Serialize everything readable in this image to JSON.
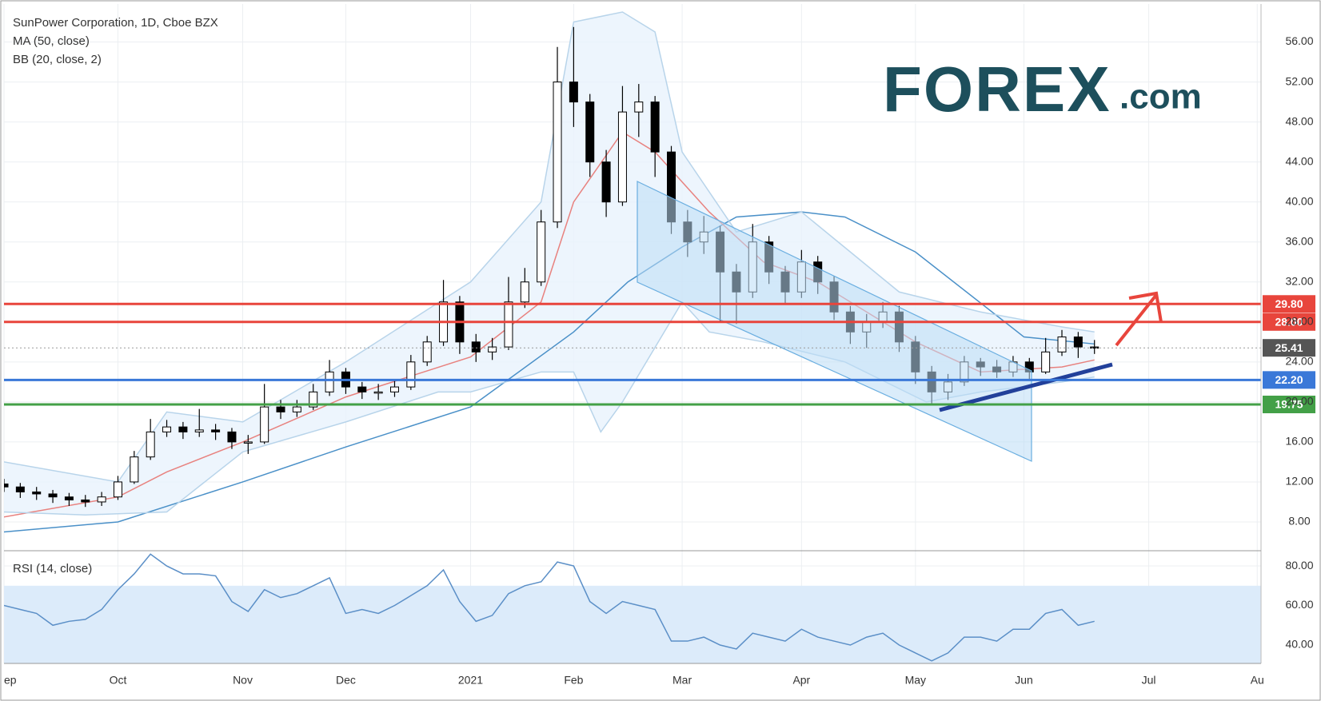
{
  "chart_data": {
    "type": "candlestick",
    "title": "SunPower Corporation, 1D, Cboe BZX",
    "indicators": [
      "MA (50, close)",
      "BB (20, close, 2)"
    ],
    "x": [
      0,
      3,
      6,
      9,
      12,
      15,
      18,
      21,
      24,
      27,
      30,
      33,
      36,
      39,
      42,
      45,
      48,
      51,
      54,
      57,
      60,
      63,
      66,
      69,
      72,
      75,
      78,
      81,
      84,
      87,
      90,
      93,
      96,
      99,
      102,
      105,
      108,
      111,
      114,
      117,
      120,
      123,
      126,
      129,
      132,
      135,
      138,
      141,
      144,
      147,
      150,
      153,
      156,
      159,
      162,
      165,
      168,
      171,
      174,
      177,
      180,
      183,
      186,
      189,
      192,
      195,
      198,
      201
    ],
    "open": [
      11.8,
      11.5,
      11,
      10.8,
      10.5,
      10.2,
      10,
      10.5,
      12,
      14.5,
      17,
      17.5,
      17,
      17.2,
      17,
      16,
      16,
      19.5,
      19,
      19.5,
      21,
      23,
      21.5,
      21,
      21,
      21.5,
      24,
      26,
      30,
      26,
      25,
      25.5,
      30,
      32,
      38,
      52,
      50,
      44,
      40,
      49,
      50,
      45,
      38,
      36,
      37,
      33,
      31,
      36,
      33,
      31,
      34,
      32,
      29,
      27,
      28,
      29,
      26,
      23,
      21,
      22,
      24,
      23.5,
      23,
      24,
      23,
      25,
      26.5,
      25.5
    ],
    "high": [
      12.3,
      11.9,
      11.5,
      11.2,
      10.9,
      10.7,
      11,
      12.6,
      15.1,
      18.3,
      18.2,
      18,
      19.3,
      17.8,
      17.4,
      16.7,
      21.8,
      20.2,
      20.2,
      21.8,
      24.2,
      23.4,
      22,
      21.8,
      22.2,
      24.7,
      26.6,
      32.2,
      30.6,
      26.8,
      26.4,
      32.5,
      33.4,
      39.2,
      55.5,
      57.5,
      50.8,
      45.2,
      51.6,
      51.8,
      50.6,
      45.6,
      39.2,
      38.6,
      37.6,
      33.8,
      37.8,
      36.6,
      33.6,
      35.2,
      34.6,
      32.6,
      29.6,
      28.8,
      30,
      29.6,
      26.6,
      23.6,
      22.8,
      24.6,
      24.4,
      24.2,
      24.6,
      24.4,
      26.4,
      27.2,
      27,
      26.2
    ],
    "low": [
      11,
      10.4,
      10.2,
      9.9,
      9.6,
      9.5,
      9.6,
      10.2,
      11.8,
      14.2,
      16.5,
      16.3,
      16.5,
      16.2,
      15.3,
      14.8,
      15.8,
      18.3,
      18.5,
      19.2,
      20.6,
      20.8,
      20.3,
      20.2,
      20.5,
      21.2,
      23.6,
      25.6,
      24.8,
      24,
      24.2,
      25.2,
      29.4,
      31.6,
      37.4,
      47.5,
      42.5,
      38.5,
      39.6,
      46.5,
      42.5,
      36.8,
      34.5,
      34.8,
      28,
      27.8,
      30.4,
      31.8,
      29.8,
      30.4,
      30.8,
      28.2,
      25.8,
      25.4,
      27.4,
      25,
      21.8,
      19.8,
      20.2,
      21.6,
      22.6,
      22.4,
      22.5,
      22.2,
      22.8,
      24.6,
      24.4,
      24.8
    ],
    "close": [
      11.5,
      11,
      10.8,
      10.5,
      10.2,
      10,
      10.5,
      12,
      14.5,
      17,
      17.5,
      17,
      17.2,
      17,
      16,
      16,
      19.5,
      19,
      19.5,
      21,
      23,
      21.5,
      21,
      21,
      21.5,
      24,
      26,
      30,
      26,
      25,
      25.5,
      30,
      32,
      38,
      52,
      50,
      44,
      40,
      49,
      50,
      45,
      38,
      36,
      37,
      33,
      31,
      36,
      33,
      31,
      34,
      32,
      29,
      27,
      28,
      29,
      26,
      23,
      21,
      22,
      24,
      23.5,
      23,
      24,
      23,
      25,
      26.5,
      25.5,
      25.41
    ],
    "up_color": "#ffffff",
    "down_color": "#000000",
    "overlays": [
      {
        "color": "#4a90c8",
        "x": [
          0,
          21,
          44,
          63,
          86,
          105,
          115,
          125,
          135,
          147,
          155,
          168,
          188,
          201
        ],
        "values": [
          7,
          8,
          12,
          15.5,
          19.5,
          27,
          32,
          35.5,
          38.5,
          39,
          38.5,
          35,
          26.5,
          25.8
        ]
      },
      {
        "color": "#e8827f",
        "x": [
          0,
          21,
          30,
          44,
          63,
          86,
          99,
          105,
          114,
          120,
          130,
          140,
          150,
          168,
          180,
          195,
          201
        ],
        "values": [
          8.5,
          10.5,
          13,
          16,
          20.5,
          24.5,
          30,
          40,
          47,
          45,
          39,
          34,
          32,
          26,
          23,
          23.5,
          24.2
        ]
      },
      {
        "color": "#b8d4ea",
        "x": [
          0,
          21,
          30,
          44,
          63,
          86,
          99,
          105,
          114,
          120,
          125,
          135,
          147,
          165,
          180,
          195,
          201
        ],
        "values": [
          14,
          12,
          19,
          18,
          24,
          32,
          40,
          58,
          59,
          57,
          45,
          37,
          39,
          31,
          29,
          27.5,
          27
        ]
      },
      {
        "color": "#b8d4ea",
        "x": [
          0,
          15,
          30,
          44,
          63,
          80,
          86,
          99,
          105,
          110,
          114,
          125,
          130,
          140,
          155,
          170,
          180,
          195,
          201
        ],
        "values": [
          9,
          8.7,
          9,
          15,
          18,
          21,
          21,
          23,
          23,
          17,
          20,
          30,
          27,
          26,
          24,
          20,
          21,
          22,
          22.5
        ]
      }
    ],
    "band_fill": "#e8f3fc",
    "xlim": [
      0,
      231.7
    ],
    "xticks": [
      {
        "value": 0,
        "label": "ep"
      },
      {
        "value": 21,
        "label": "Oct"
      },
      {
        "value": 44,
        "label": "Nov"
      },
      {
        "value": 63,
        "label": "Dec"
      },
      {
        "value": 86,
        "label": "2021"
      },
      {
        "value": 105,
        "label": "Feb"
      },
      {
        "value": 125,
        "label": "Mar"
      },
      {
        "value": 147,
        "label": "Apr"
      },
      {
        "value": 168,
        "label": "May"
      },
      {
        "value": 188,
        "label": "Jun"
      },
      {
        "value": 211,
        "label": "Jul"
      },
      {
        "value": 231,
        "label": "Au"
      }
    ],
    "ylim": [
      5.2,
      59.8
    ],
    "yticks": [
      {
        "value": 8,
        "label": "8.00"
      },
      {
        "value": 12,
        "label": "12.00"
      },
      {
        "value": 16,
        "label": "16.00"
      },
      {
        "value": 20,
        "label": "20.00"
      },
      {
        "value": 24,
        "label": "24.00"
      },
      {
        "value": 28,
        "label": "28.00"
      },
      {
        "value": 32,
        "label": "32.00"
      },
      {
        "value": 36,
        "label": "36.00"
      },
      {
        "value": 40,
        "label": "40.00"
      },
      {
        "value": 44,
        "label": "44.00"
      },
      {
        "value": 48,
        "label": "48.00"
      },
      {
        "value": 52,
        "label": "52.00"
      },
      {
        "value": 56,
        "label": "56.00"
      }
    ],
    "grid": true,
    "levels": [
      {
        "value": 29.8,
        "label": "29.80",
        "color": "#e8453c"
      },
      {
        "value": 28,
        "label": "28.00",
        "color": "#e8453c"
      },
      {
        "value": 25.41,
        "label": "25.41",
        "color": "#555555"
      },
      {
        "value": 22.2,
        "label": "22.20",
        "color": "#3a78d8"
      },
      {
        "value": 19.75,
        "label": "19.75",
        "color": "#43a047"
      }
    ],
    "rsi": {
      "title": "RSI (14, close)",
      "color": "#5b8fc7",
      "band": [
        30,
        70
      ],
      "band_color": "#dcebfa",
      "values": [
        60,
        58,
        56,
        50,
        52,
        53,
        58,
        68,
        76,
        86,
        80,
        76,
        76,
        75,
        62,
        57,
        68,
        64,
        66,
        70,
        74,
        56,
        58,
        56,
        60,
        65,
        70,
        78,
        62,
        52,
        55,
        66,
        70,
        72,
        82,
        80,
        62,
        56,
        62,
        60,
        58,
        42,
        42,
        44,
        40,
        38,
        46,
        44,
        42,
        48,
        44,
        42,
        40,
        44,
        46,
        40,
        36,
        32,
        36,
        44,
        44,
        42,
        48,
        48,
        56,
        58,
        50,
        52
      ],
      "ylim": [
        30.7,
        87.3
      ],
      "yticks": [
        {
          "value": 40,
          "label": "40.00"
        },
        {
          "value": 60,
          "label": "60.00"
        },
        {
          "value": 80,
          "label": "80.00"
        }
      ]
    },
    "logo": {
      "main": "FOREX",
      "suffix": ".com"
    }
  }
}
